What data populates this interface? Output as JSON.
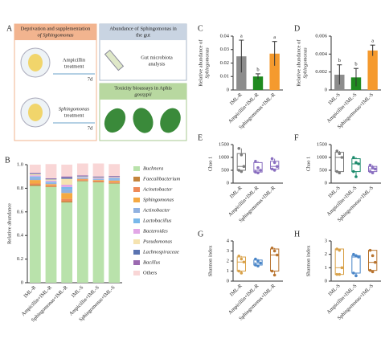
{
  "diagram": {
    "label": "A",
    "deprivation_title": [
      "Deprivation and supplementation",
      "of Sphingomonas"
    ],
    "abundance_title": [
      "Abundance of Sphingomonas in",
      "the gut"
    ],
    "gut_analysis": [
      "Gut microbiota",
      "analysis"
    ],
    "toxicity_title": [
      "Toxicity bioassays in Aphis",
      "gossypii"
    ],
    "ampicillin": [
      "Ampicillin",
      "treatment"
    ],
    "sphingomonas": [
      "Sphingomonas",
      "treatment"
    ],
    "days_1": "7d",
    "days_2": "7d"
  },
  "chart_data": [
    {
      "type": "stacked_bar",
      "panel": "B",
      "ylabel": "Relative abundance",
      "categories": [
        "IML-R",
        "Ampicillin+IML-R",
        "Sphingomonas+IML-R",
        "IML-S",
        "Ampicillin+IML-S",
        "Sphingomonas+IML-S"
      ],
      "ylim": [
        0,
        1
      ],
      "yticks": [
        0,
        0.2,
        0.4,
        0.6,
        0.8,
        {
          "value": 1,
          "label": "1.0"
        }
      ],
      "series": [
        {
          "name": "Buchnera",
          "color": "#b9e2ab",
          "values": [
            0.82,
            0.81,
            0.68,
            0.86,
            0.85,
            0.84
          ]
        },
        {
          "name": "Faecalibacterium",
          "color": "#c4843c",
          "values": [
            0.01,
            0.005,
            0.01,
            0.005,
            0.005,
            0.005
          ]
        },
        {
          "name": "Acinetobacter",
          "color": "#ee8a58",
          "values": [
            0.01,
            0.01,
            0.02,
            0.01,
            0.01,
            0.01
          ]
        },
        {
          "name": "Sphingomonas",
          "color": "#f5a942",
          "values": [
            0.03,
            0.01,
            0.05,
            0.005,
            0.005,
            0.01
          ]
        },
        {
          "name": "Actinobacter",
          "color": "#90b1e0",
          "values": [
            0.02,
            0.01,
            0.03,
            0.005,
            0.005,
            0.01
          ]
        },
        {
          "name": "Lactobacillus",
          "color": "#79b8ea",
          "values": [
            0.01,
            0.01,
            0.02,
            0.005,
            0.005,
            0.01
          ]
        },
        {
          "name": "Bacteroides",
          "color": "#e2a7e6",
          "values": [
            0.01,
            0.01,
            0.02,
            0.005,
            0.005,
            0.005
          ]
        },
        {
          "name": "Pseudomonas",
          "color": "#f5e3b0",
          "values": [
            0.01,
            0.01,
            0.05,
            0.005,
            0.005,
            0.005
          ]
        },
        {
          "name": "Lachnospiraceae",
          "color": "#5a73b0",
          "values": [
            0.005,
            0.005,
            0.01,
            0.005,
            0.005,
            0.005
          ]
        },
        {
          "name": "Bacillus",
          "color": "#9b69b0",
          "values": [
            0.005,
            0.005,
            0.01,
            0.005,
            0.005,
            0.005
          ]
        },
        {
          "name": "Others",
          "color": "#f9d6d6",
          "values": [
            0.07,
            0.12,
            0.1,
            0.1,
            0.11,
            0.1
          ]
        }
      ]
    },
    {
      "type": "bar",
      "panel": "C",
      "ylabel": [
        "Relative abundance of",
        "Sphingomonas"
      ],
      "categories": [
        "IML-R",
        "Ampicillin+IML-R",
        "Sphingomonas+IML-R"
      ],
      "values": [
        0.025,
        0.01,
        0.027
      ],
      "errors": [
        0.012,
        0.002,
        0.009
      ],
      "letters": [
        "a",
        "b",
        "a"
      ],
      "colors": [
        "#8c8c8c",
        "#1f8a1f",
        "#f59a2e"
      ],
      "ylim": [
        0,
        0.04
      ],
      "yticks": [
        0,
        0.01,
        0.02,
        0.03,
        0.04
      ]
    },
    {
      "type": "bar",
      "panel": "D",
      "ylabel": [
        "Relative abundance of",
        "Sphingomonas"
      ],
      "categories": [
        "IML-S",
        "Ampicillin+IML-S",
        "Sphingomonas+IML-S"
      ],
      "values": [
        0.0017,
        0.0014,
        0.0044
      ],
      "errors": [
        0.0011,
        0.001,
        0.0006
      ],
      "letters": [
        "b",
        "b",
        "a"
      ],
      "colors": [
        "#8c8c8c",
        "#1f8a1f",
        "#f59a2e"
      ],
      "ylim": [
        0,
        0.006
      ],
      "yticks": [
        0,
        0.002,
        0.004,
        0.006
      ]
    },
    {
      "type": "box",
      "panel": "E",
      "ylabel": "Chao 1",
      "categories": [
        "IML-R",
        "Ampicillin+IML-R",
        "Sphingomonas+IML-R"
      ],
      "colors": [
        "#7d7d7d",
        "#8a6fc0",
        "#8a6fc0"
      ],
      "ylim": [
        0,
        1500
      ],
      "yticks": [
        0,
        500,
        1000,
        1500
      ],
      "boxes": [
        {
          "min": 450,
          "q1": 500,
          "median": 650,
          "q3": 1150,
          "max": 1350
        },
        {
          "min": 400,
          "q1": 430,
          "median": 500,
          "q3": 800,
          "max": 850
        },
        {
          "min": 500,
          "q1": 550,
          "median": 650,
          "q3": 850,
          "max": 950
        }
      ],
      "points": [
        [
          1350,
          1100,
          650,
          500,
          450
        ],
        [
          850,
          600,
          500,
          430,
          400
        ],
        [
          950,
          800,
          650,
          550,
          500
        ]
      ]
    },
    {
      "type": "box",
      "panel": "F",
      "ylabel": "Chao 1",
      "categories": [
        "IML-S",
        "Ampicillin+IML-S",
        "Sphingomonas+IML-S"
      ],
      "colors": [
        "#7d7d7d",
        "#1b8a6b",
        "#8a6fc0"
      ],
      "ylim": [
        0,
        1500
      ],
      "yticks": [
        0,
        500,
        1000,
        1500
      ],
      "boxes": [
        {
          "min": 400,
          "q1": 450,
          "median": 1000,
          "q3": 1200,
          "max": 1250
        },
        {
          "min": 250,
          "q1": 450,
          "median": 750,
          "q3": 950,
          "max": 1000
        },
        {
          "min": 400,
          "q1": 450,
          "median": 550,
          "q3": 650,
          "max": 700
        }
      ],
      "points": [
        [
          1250,
          1150,
          1000,
          450,
          400
        ],
        [
          1000,
          800,
          750,
          450,
          250
        ],
        [
          700,
          600,
          550,
          450,
          400
        ]
      ]
    },
    {
      "type": "box",
      "panel": "G",
      "ylabel": "Shannon index",
      "categories": [
        "IML-R",
        "Ampicillin+IML-R",
        "Sphingomonas+IML-R"
      ],
      "colors": [
        "#d9a24a",
        "#4a86c8",
        "#b8732e"
      ],
      "ylim": [
        0,
        4
      ],
      "yticks": [
        0,
        1,
        2,
        3,
        4
      ],
      "boxes": [
        {
          "min": 0.8,
          "q1": 1,
          "median": 1.9,
          "q3": 2.4,
          "max": 2.5
        },
        {
          "min": 1.5,
          "q1": 1.6,
          "median": 1.8,
          "q3": 2.1,
          "max": 2.2
        },
        {
          "min": 0.6,
          "q1": 1,
          "median": 2.6,
          "q3": 3.2,
          "max": 3.3
        }
      ],
      "points": [
        [
          2.5,
          2.2,
          1.9,
          1,
          0.8
        ],
        [
          2.2,
          2,
          1.8,
          1.6,
          1.5
        ],
        [
          3.3,
          3,
          2.6,
          1,
          0.6
        ]
      ]
    },
    {
      "type": "box",
      "panel": "H",
      "ylabel": "Shannon index",
      "categories": [
        "IML-S",
        "Ampicillin+IML-S",
        "Sphingomonas+IML-S"
      ],
      "colors": [
        "#d9a24a",
        "#4a86c8",
        "#b8732e"
      ],
      "ylim": [
        0,
        3
      ],
      "yticks": [
        0,
        1,
        2,
        3
      ],
      "boxes": [
        {
          "min": 0.5,
          "q1": 0.5,
          "median": 1,
          "q3": 2.4,
          "max": 2.4
        },
        {
          "min": 0.4,
          "q1": 0.6,
          "median": 1.8,
          "q3": 1.9,
          "max": 2
        },
        {
          "min": 0.7,
          "q1": 0.8,
          "median": 1.4,
          "q3": 2.3,
          "max": 2.3
        }
      ],
      "points": [
        [
          2.4,
          2.3,
          1,
          0.5,
          0.5
        ],
        [
          2,
          1.9,
          1.8,
          0.6,
          0.4
        ],
        [
          2.3,
          1.9,
          1.4,
          0.8,
          0.7
        ]
      ]
    }
  ]
}
